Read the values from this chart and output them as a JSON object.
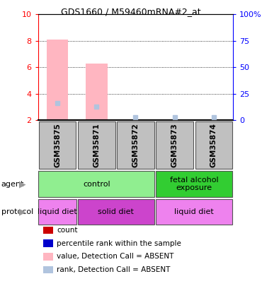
{
  "title": "GDS1660 / M59460mRNA#2_at",
  "samples": [
    "GSM35875",
    "GSM35871",
    "GSM35872",
    "GSM35873",
    "GSM35874"
  ],
  "ylim_left": [
    2,
    10
  ],
  "ylim_right": [
    0,
    100
  ],
  "yticks_left": [
    2,
    4,
    6,
    8,
    10
  ],
  "yticks_right": [
    0,
    25,
    50,
    75,
    100
  ],
  "ytick_labels_right": [
    "0",
    "25",
    "50",
    "75",
    "100%"
  ],
  "bar_values": [
    8.1,
    6.3,
    2.0,
    2.0,
    2.0
  ],
  "bar_color": "#ffb6c1",
  "rank_markers": [
    3.3,
    3.0,
    2.2,
    2.2,
    2.2
  ],
  "rank_color": "#b0c4de",
  "agents": [
    {
      "label": "control",
      "cols": [
        0,
        1,
        2
      ],
      "color": "#90ee90"
    },
    {
      "label": "fetal alcohol\nexposure",
      "cols": [
        3,
        4
      ],
      "color": "#32cd32"
    }
  ],
  "protocols": [
    {
      "label": "liquid diet",
      "cols": [
        0
      ],
      "color": "#ee82ee"
    },
    {
      "label": "solid diet",
      "cols": [
        1,
        2
      ],
      "color": "#cc44cc"
    },
    {
      "label": "liquid diet",
      "cols": [
        3,
        4
      ],
      "color": "#ee82ee"
    }
  ],
  "legend_items": [
    {
      "label": "count",
      "color": "#cc0000"
    },
    {
      "label": "percentile rank within the sample",
      "color": "#0000cc"
    },
    {
      "label": "value, Detection Call = ABSENT",
      "color": "#ffb6c1"
    },
    {
      "label": "rank, Detection Call = ABSENT",
      "color": "#b0c4de"
    }
  ],
  "gray_color": "#c0c0c0",
  "border_color": "#555555"
}
